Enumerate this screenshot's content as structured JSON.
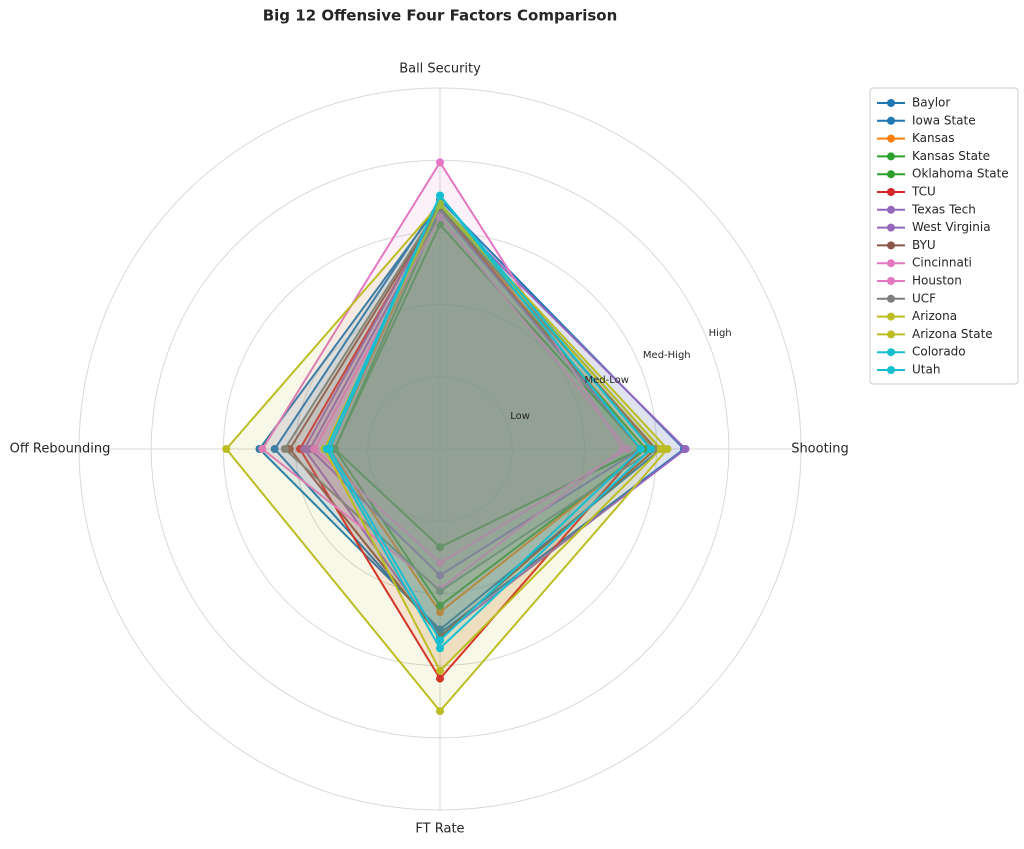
{
  "chart_data": {
    "type": "radar",
    "title": "Big 12 Offensive Four Factors Comparison",
    "categories": [
      "Ball Security",
      "Shooting",
      "FT Rate",
      "Off Rebounding"
    ],
    "ylim": [
      0,
      5
    ],
    "rgrid": [
      1,
      2,
      3,
      4,
      5
    ],
    "yticks": [
      {
        "value": 1.2,
        "label": "Low"
      },
      {
        "value": 2.5,
        "label": "Med-Low"
      },
      {
        "value": 3.4,
        "label": "Med-High"
      },
      {
        "value": 4.2,
        "label": "High"
      }
    ],
    "legend": "upper right",
    "series": [
      {
        "name": "Baylor",
        "color": "#1f77b4",
        "values": [
          3.4,
          3.06,
          2.5,
          2.5
        ]
      },
      {
        "name": "Iowa State",
        "color": "#1f77b4",
        "values": [
          3.45,
          3.38,
          2.55,
          2.29
        ]
      },
      {
        "name": "Kansas",
        "color": "#ff7f0e",
        "values": [
          3.35,
          2.85,
          2.26,
          1.53
        ]
      },
      {
        "name": "Kansas State",
        "color": "#2ca02c",
        "values": [
          3.11,
          2.78,
          1.36,
          1.46
        ]
      },
      {
        "name": "Oklahoma State",
        "color": "#2ca02c",
        "values": [
          3.3,
          2.85,
          2.17,
          1.46
        ]
      },
      {
        "name": "TCU",
        "color": "#d62728",
        "values": [
          3.35,
          2.78,
          3.18,
          1.94
        ]
      },
      {
        "name": "Texas Tech",
        "color": "#9467bd",
        "values": [
          3.38,
          3.4,
          2.6,
          1.88
        ]
      },
      {
        "name": "West Virginia",
        "color": "#9467bd",
        "values": [
          3.3,
          2.78,
          1.75,
          1.8
        ]
      },
      {
        "name": "BYU",
        "color": "#8c564b",
        "values": [
          3.35,
          2.99,
          2.6,
          2.08
        ]
      },
      {
        "name": "Cincinnati",
        "color": "#e377c2",
        "values": [
          3.97,
          2.53,
          1.94,
          2.46
        ]
      },
      {
        "name": "Houston",
        "color": "#e377c2",
        "values": [
          3.21,
          2.6,
          1.58,
          1.74
        ]
      },
      {
        "name": "UCF",
        "color": "#7f7f7f",
        "values": [
          3.38,
          2.96,
          1.97,
          2.15
        ]
      },
      {
        "name": "Arizona",
        "color": "#bcbd22",
        "values": [
          3.4,
          3.15,
          3.63,
          2.96
        ]
      },
      {
        "name": "Arizona State",
        "color": "#bcbd22",
        "values": [
          3.38,
          3.06,
          3.07,
          1.6
        ]
      },
      {
        "name": "Colorado",
        "color": "#17becf",
        "values": [
          3.51,
          2.92,
          2.76,
          1.57
        ]
      },
      {
        "name": "Utah",
        "color": "#17becf",
        "values": [
          3.51,
          2.78,
          2.65,
          1.53
        ]
      }
    ]
  }
}
